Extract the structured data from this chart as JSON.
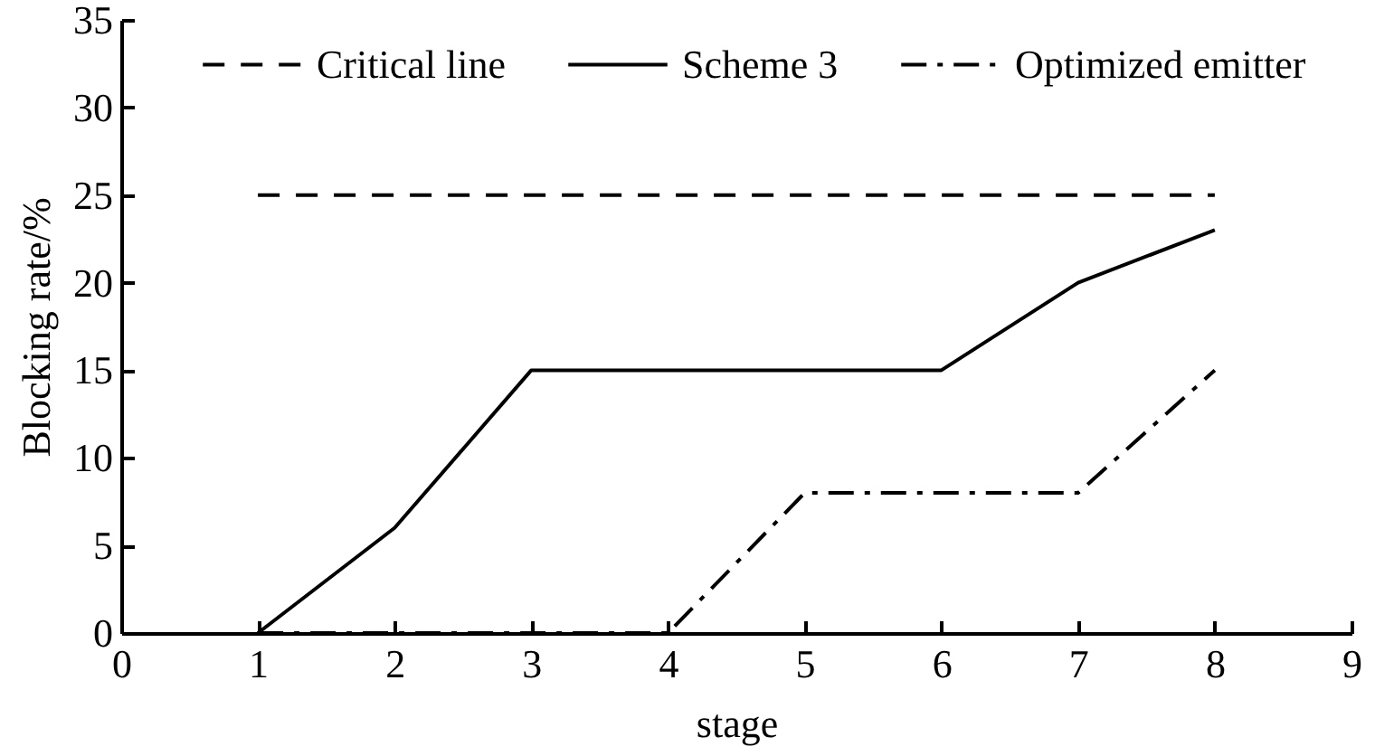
{
  "chart_data": {
    "type": "line",
    "xlabel": "stage",
    "ylabel": "Blocking rate/%",
    "x": [
      1,
      2,
      3,
      4,
      5,
      6,
      7,
      8
    ],
    "series": [
      {
        "name": "Critical line",
        "color": "#000000",
        "line_style": "dashed",
        "values": [
          25,
          25,
          25,
          25,
          25,
          25,
          25,
          25
        ]
      },
      {
        "name": "Scheme 3",
        "color": "#000000",
        "line_style": "solid",
        "values": [
          0,
          6,
          15,
          15,
          15,
          15,
          20,
          23
        ]
      },
      {
        "name": "Optimized emitter",
        "color": "#000000",
        "line_style": "dashdot",
        "values": [
          0,
          0,
          0,
          0,
          8,
          8,
          8,
          15
        ]
      }
    ],
    "xlim": [
      0,
      9
    ],
    "ylim": [
      0,
      35
    ],
    "xticks": [
      0,
      1,
      2,
      3,
      4,
      5,
      6,
      7,
      8,
      9
    ],
    "yticks": [
      0,
      5,
      10,
      15,
      20,
      25,
      30,
      35
    ],
    "grid": false,
    "legend": "top"
  }
}
